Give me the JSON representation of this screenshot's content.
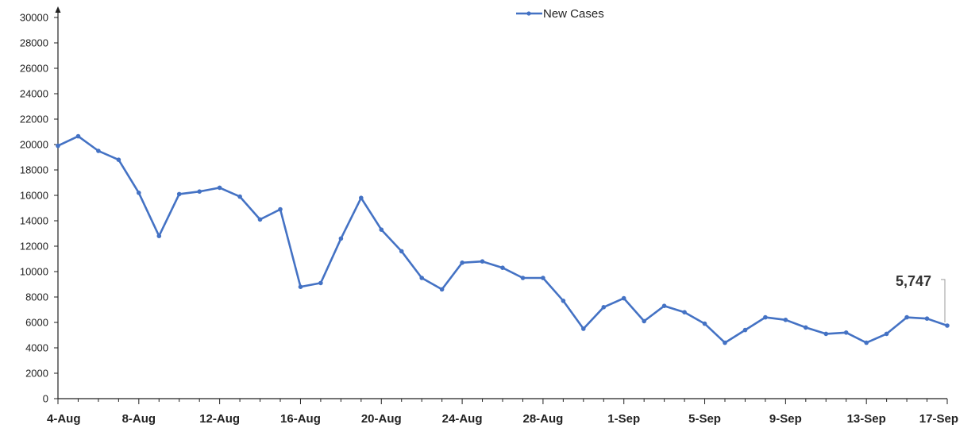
{
  "chart_data": {
    "type": "line",
    "title": "",
    "xlabel": "",
    "ylabel": "",
    "ylim": [
      0,
      30000
    ],
    "yticks": [
      "0",
      "2000",
      "4000",
      "6000",
      "8000",
      "10000",
      "12000",
      "14000",
      "16000",
      "18000",
      "20000",
      "22000",
      "24000",
      "26000",
      "28000",
      "30000"
    ],
    "x": [
      "4-Aug",
      "5-Aug",
      "6-Aug",
      "7-Aug",
      "8-Aug",
      "9-Aug",
      "10-Aug",
      "11-Aug",
      "12-Aug",
      "13-Aug",
      "14-Aug",
      "15-Aug",
      "16-Aug",
      "17-Aug",
      "18-Aug",
      "19-Aug",
      "20-Aug",
      "21-Aug",
      "22-Aug",
      "23-Aug",
      "24-Aug",
      "25-Aug",
      "26-Aug",
      "27-Aug",
      "28-Aug",
      "29-Aug",
      "30-Aug",
      "31-Aug",
      "1-Sep",
      "2-Sep",
      "3-Sep",
      "4-Sep",
      "5-Sep",
      "6-Sep",
      "7-Sep",
      "8-Sep",
      "9-Sep",
      "10-Sep",
      "11-Sep",
      "12-Sep",
      "13-Sep",
      "14-Sep",
      "15-Sep",
      "16-Sep",
      "17-Sep"
    ],
    "xtick_labels": [
      "4-Aug",
      "8-Aug",
      "12-Aug",
      "16-Aug",
      "20-Aug",
      "24-Aug",
      "28-Aug",
      "1-Sep",
      "5-Sep",
      "9-Sep",
      "13-Sep",
      "17-Sep"
    ],
    "series": [
      {
        "name": "New Cases",
        "color": "#4472C4",
        "values": [
          19900,
          20650,
          19500,
          18800,
          16200,
          12800,
          16100,
          16300,
          16600,
          15900,
          14100,
          14900,
          8800,
          9100,
          12600,
          15800,
          13300,
          11600,
          9500,
          8600,
          10700,
          10800,
          10300,
          9500,
          9500,
          7700,
          5500,
          7200,
          7900,
          6100,
          7300,
          6800,
          5900,
          4400,
          5400,
          6400,
          6200,
          5600,
          5100,
          5200,
          4400,
          5100,
          6400,
          6300,
          5747
        ]
      }
    ],
    "legend": {
      "position": "top-center",
      "label": "New Cases"
    },
    "annotation": {
      "text": "5,747",
      "x": "17-Sep",
      "value": 5747
    },
    "grid": false
  }
}
